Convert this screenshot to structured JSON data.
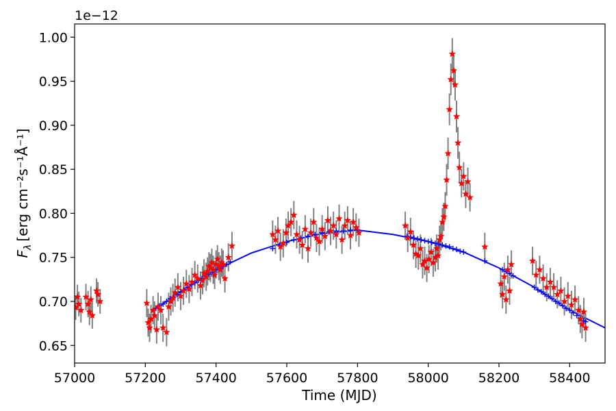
{
  "chart_data": {
    "type": "scatter",
    "title": "",
    "xlabel": "Time (MJD)",
    "ylabel_main": "F",
    "ylabel_sub": "λ",
    "ylabel_units": "[erg cm⁻²s⁻¹Å⁻¹]",
    "y_offset_label": "1e−12",
    "xlim": [
      57000,
      58500
    ],
    "ylim": [
      0.63,
      1.015
    ],
    "x_ticks": [
      57000,
      57200,
      57400,
      57600,
      57800,
      58000,
      58200,
      58400
    ],
    "x_tick_labels": [
      "57000",
      "57200",
      "57400",
      "57600",
      "57800",
      "58000",
      "58200",
      "58400"
    ],
    "y_ticks": [
      0.65,
      0.7,
      0.75,
      0.8,
      0.85,
      0.9,
      0.95,
      1.0
    ],
    "y_tick_labels": [
      "0.65",
      "0.70",
      "0.75",
      "0.80",
      "0.85",
      "0.90",
      "0.95",
      "1.00"
    ],
    "grid": false,
    "colors": {
      "observed": "#ff0000",
      "errorbar": "#808080",
      "model": "#0000ff"
    },
    "series": [
      {
        "marker": "star",
        "error_color": "#808080",
        "x": [
          57003,
          57008,
          57012,
          57018,
          57032,
          57038,
          57042,
          57046,
          57050,
          57062,
          57066,
          57072,
          57204,
          57208,
          57212,
          57216,
          57222,
          57226,
          57232,
          57236,
          57244,
          57250,
          57260,
          57266,
          57272,
          57278,
          57284,
          57292,
          57300,
          57308,
          57316,
          57324,
          57332,
          57340,
          57348,
          57356,
          57362,
          57366,
          57372,
          57376,
          57380,
          57384,
          57388,
          57392,
          57396,
          57400,
          57404,
          57408,
          57412,
          57416,
          57420,
          57425,
          57435,
          57445,
          57560,
          57568,
          57575,
          57582,
          57590,
          57598,
          57604,
          57612,
          57620,
          57628,
          57636,
          57644,
          57652,
          57660,
          57668,
          57676,
          57684,
          57692,
          57700,
          57708,
          57716,
          57724,
          57732,
          57740,
          57748,
          57756,
          57764,
          57772,
          57780,
          57788,
          57796,
          57804,
          57935,
          57942,
          57950,
          57958,
          57965,
          57972,
          57978,
          57984,
          57990,
          57996,
          58002,
          58008,
          58014,
          58020,
          58024,
          58028,
          58032,
          58036,
          58040,
          58044,
          58048,
          58052,
          58056,
          58060,
          58064,
          58068,
          58072,
          58076,
          58080,
          58084,
          58088,
          58094,
          58100,
          58106,
          58112,
          58118,
          58160,
          58205,
          58210,
          58215,
          58220,
          58225,
          58230,
          58235,
          58295,
          58305,
          58315,
          58325,
          58335,
          58345,
          58355,
          58365,
          58375,
          58385,
          58395,
          58405,
          58415,
          58425,
          58430,
          58435,
          58440,
          58445
        ],
        "y": [
          0.693,
          0.705,
          0.697,
          0.69,
          0.705,
          0.697,
          0.688,
          0.702,
          0.684,
          0.712,
          0.708,
          0.7,
          0.698,
          0.676,
          0.67,
          0.68,
          0.69,
          0.684,
          0.668,
          0.694,
          0.69,
          0.67,
          0.665,
          0.694,
          0.7,
          0.704,
          0.71,
          0.716,
          0.706,
          0.712,
          0.72,
          0.714,
          0.722,
          0.73,
          0.726,
          0.718,
          0.724,
          0.732,
          0.728,
          0.734,
          0.74,
          0.738,
          0.744,
          0.736,
          0.73,
          0.742,
          0.748,
          0.74,
          0.736,
          0.744,
          0.742,
          0.726,
          0.75,
          0.763,
          0.776,
          0.77,
          0.78,
          0.762,
          0.766,
          0.778,
          0.786,
          0.79,
          0.798,
          0.776,
          0.77,
          0.764,
          0.782,
          0.76,
          0.778,
          0.79,
          0.772,
          0.768,
          0.782,
          0.774,
          0.792,
          0.78,
          0.786,
          0.776,
          0.794,
          0.77,
          0.786,
          0.792,
          0.775,
          0.79,
          0.784,
          0.778,
          0.786,
          0.772,
          0.779,
          0.764,
          0.754,
          0.752,
          0.76,
          0.742,
          0.746,
          0.738,
          0.748,
          0.756,
          0.744,
          0.75,
          0.76,
          0.752,
          0.77,
          0.774,
          0.79,
          0.796,
          0.808,
          0.838,
          0.868,
          0.918,
          0.952,
          0.981,
          0.962,
          0.946,
          0.91,
          0.88,
          0.852,
          0.834,
          0.842,
          0.822,
          0.836,
          0.818,
          0.762,
          0.72,
          0.708,
          0.728,
          0.702,
          0.736,
          0.712,
          0.742,
          0.746,
          0.73,
          0.736,
          0.726,
          0.716,
          0.722,
          0.716,
          0.708,
          0.712,
          0.7,
          0.706,
          0.696,
          0.702,
          0.69,
          0.68,
          0.674,
          0.688,
          0.67
        ],
        "yerr": [
          0.014,
          0.014,
          0.014,
          0.014,
          0.015,
          0.015,
          0.015,
          0.015,
          0.015,
          0.014,
          0.014,
          0.014,
          0.016,
          0.016,
          0.016,
          0.016,
          0.016,
          0.016,
          0.016,
          0.016,
          0.016,
          0.016,
          0.016,
          0.016,
          0.016,
          0.016,
          0.016,
          0.016,
          0.016,
          0.016,
          0.016,
          0.016,
          0.016,
          0.016,
          0.016,
          0.016,
          0.016,
          0.016,
          0.016,
          0.016,
          0.016,
          0.016,
          0.016,
          0.016,
          0.016,
          0.016,
          0.016,
          0.016,
          0.016,
          0.016,
          0.016,
          0.016,
          0.016,
          0.016,
          0.016,
          0.016,
          0.016,
          0.016,
          0.016,
          0.016,
          0.016,
          0.016,
          0.016,
          0.016,
          0.016,
          0.016,
          0.016,
          0.016,
          0.016,
          0.016,
          0.016,
          0.016,
          0.016,
          0.016,
          0.016,
          0.016,
          0.016,
          0.016,
          0.016,
          0.016,
          0.016,
          0.016,
          0.016,
          0.016,
          0.016,
          0.016,
          0.016,
          0.016,
          0.016,
          0.016,
          0.016,
          0.016,
          0.016,
          0.016,
          0.016,
          0.016,
          0.016,
          0.016,
          0.016,
          0.016,
          0.016,
          0.016,
          0.016,
          0.016,
          0.016,
          0.016,
          0.016,
          0.018,
          0.018,
          0.018,
          0.018,
          0.018,
          0.018,
          0.018,
          0.018,
          0.018,
          0.018,
          0.016,
          0.016,
          0.016,
          0.016,
          0.016,
          0.016,
          0.016,
          0.016,
          0.016,
          0.016,
          0.016,
          0.016,
          0.016,
          0.016,
          0.016,
          0.016,
          0.016,
          0.016,
          0.016,
          0.016,
          0.016,
          0.016,
          0.016,
          0.016,
          0.016,
          0.016,
          0.016,
          0.016,
          0.016,
          0.016,
          0.016
        ]
      },
      {
        "marker": "plus",
        "x": [
          57230,
          57240,
          57250,
          57260,
          57270,
          57280,
          57290,
          57300,
          57310,
          57320,
          57330,
          57340,
          57350,
          57360,
          57370,
          57380,
          57390,
          57400,
          57410,
          57420,
          57430,
          57440,
          57560,
          57580,
          57600,
          57620,
          57640,
          57660,
          57680,
          57700,
          57720,
          57740,
          57760,
          57780,
          57800,
          57940,
          57950,
          57960,
          57970,
          57980,
          57990,
          58000,
          58010,
          58020,
          58030,
          58040,
          58050,
          58060,
          58070,
          58080,
          58090,
          58100,
          58160,
          58210,
          58220,
          58230,
          58240,
          58300,
          58310,
          58320,
          58330,
          58340,
          58350,
          58360,
          58370,
          58380,
          58390,
          58400,
          58410,
          58420,
          58430,
          58440,
          58445
        ],
        "y": [
          0.692,
          0.695,
          0.697,
          0.7,
          0.703,
          0.705,
          0.708,
          0.711,
          0.713,
          0.716,
          0.719,
          0.721,
          0.724,
          0.726,
          0.729,
          0.731,
          0.733,
          0.736,
          0.738,
          0.74,
          0.742,
          0.745,
          0.76,
          0.764,
          0.767,
          0.77,
          0.772,
          0.774,
          0.776,
          0.778,
          0.779,
          0.78,
          0.78,
          0.781,
          0.781,
          0.774,
          0.773,
          0.772,
          0.771,
          0.77,
          0.769,
          0.768,
          0.767,
          0.766,
          0.765,
          0.764,
          0.763,
          0.762,
          0.76,
          0.759,
          0.757,
          0.756,
          0.746,
          0.736,
          0.734,
          0.732,
          0.729,
          0.716,
          0.713,
          0.711,
          0.708,
          0.706,
          0.703,
          0.7,
          0.698,
          0.695,
          0.692,
          0.69,
          0.687,
          0.684,
          0.681,
          0.678,
          0.677
        ]
      },
      {
        "type": "line",
        "x": [
          57230,
          57300,
          57400,
          57500,
          57600,
          57700,
          57800,
          57900,
          58000,
          58100,
          58200,
          58300,
          58400,
          58500
        ],
        "y": [
          0.692,
          0.711,
          0.736,
          0.755,
          0.768,
          0.777,
          0.781,
          0.776,
          0.768,
          0.756,
          0.738,
          0.716,
          0.69,
          0.67
        ]
      }
    ]
  }
}
